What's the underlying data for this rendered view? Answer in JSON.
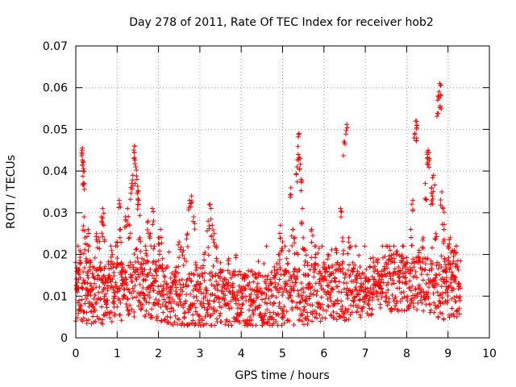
{
  "colors": {
    "series": "#ff0000",
    "axis": "#000000",
    "grid": "#a0a0a0"
  },
  "chart_data": {
    "type": "scatter",
    "title": "Day 278 of 2011, Rate Of TEC Index for receiver hob2",
    "xlabel": "GPS time / hours",
    "ylabel": "ROTI / TECUs",
    "xlim": [
      0,
      10
    ],
    "ylim": [
      0,
      0.07
    ],
    "grid": true,
    "marker": "plus",
    "x_ticks": [
      0,
      1,
      2,
      3,
      4,
      5,
      6,
      7,
      8,
      9,
      10
    ],
    "x_tick_labels": [
      "0",
      "1",
      "2",
      "3",
      "4",
      "5",
      "6",
      "7",
      "8",
      "9",
      "10"
    ],
    "y_ticks": [
      0,
      0.01,
      0.02,
      0.03,
      0.04,
      0.05,
      0.06,
      0.07
    ],
    "y_tick_labels": [
      "0",
      "0.01",
      "0.02",
      "0.03",
      "0.04",
      "0.05",
      "0.06",
      "0.07"
    ],
    "series": [
      {
        "name": "ROTI",
        "color": "#ff0000",
        "points": [
          [
            0.02,
            0.012
          ],
          [
            0.05,
            0.016
          ],
          [
            0.08,
            0.009
          ],
          [
            0.1,
            0.021
          ],
          [
            0.12,
            0.018
          ],
          [
            0.15,
            0.045
          ],
          [
            0.16,
            0.0455
          ],
          [
            0.18,
            0.042
          ],
          [
            0.18,
            0.04
          ],
          [
            0.2,
            0.037
          ],
          [
            0.2,
            0.029
          ],
          [
            0.22,
            0.024
          ],
          [
            0.25,
            0.019
          ],
          [
            0.28,
            0.015
          ],
          [
            0.3,
            0.026
          ],
          [
            0.32,
            0.022
          ],
          [
            0.35,
            0.011
          ],
          [
            0.4,
            0.008
          ],
          [
            0.45,
            0.013
          ],
          [
            0.5,
            0.025
          ],
          [
            0.55,
            0.024
          ],
          [
            0.6,
            0.018
          ],
          [
            0.62,
            0.029
          ],
          [
            0.65,
            0.031
          ],
          [
            0.68,
            0.027
          ],
          [
            0.7,
            0.012
          ],
          [
            0.75,
            0.009
          ],
          [
            0.8,
            0.015
          ],
          [
            0.85,
            0.022
          ],
          [
            0.9,
            0.017
          ],
          [
            0.95,
            0.01
          ],
          [
            1.0,
            0.023
          ],
          [
            1.05,
            0.033
          ],
          [
            1.08,
            0.026
          ],
          [
            1.1,
            0.018
          ],
          [
            1.15,
            0.014
          ],
          [
            1.2,
            0.029
          ],
          [
            1.25,
            0.031
          ],
          [
            1.3,
            0.027
          ],
          [
            1.35,
            0.037
          ],
          [
            1.38,
            0.039
          ],
          [
            1.4,
            0.045
          ],
          [
            1.42,
            0.046
          ],
          [
            1.45,
            0.041
          ],
          [
            1.48,
            0.038
          ],
          [
            1.5,
            0.035
          ],
          [
            1.52,
            0.033
          ],
          [
            1.55,
            0.024
          ],
          [
            1.6,
            0.019
          ],
          [
            1.65,
            0.014
          ],
          [
            1.7,
            0.021
          ],
          [
            1.75,
            0.028
          ],
          [
            1.8,
            0.025
          ],
          [
            1.85,
            0.031
          ],
          [
            1.9,
            0.022
          ],
          [
            1.95,
            0.016
          ],
          [
            2.0,
            0.024
          ],
          [
            2.05,
            0.026
          ],
          [
            2.1,
            0.019
          ],
          [
            2.2,
            0.013
          ],
          [
            2.3,
            0.012
          ],
          [
            2.4,
            0.016
          ],
          [
            2.5,
            0.023
          ],
          [
            2.6,
            0.021
          ],
          [
            2.7,
            0.025
          ],
          [
            2.75,
            0.033
          ],
          [
            2.8,
            0.034
          ],
          [
            2.85,
            0.029
          ],
          [
            2.9,
            0.018
          ],
          [
            3.0,
            0.015
          ],
          [
            3.1,
            0.02
          ],
          [
            3.2,
            0.028
          ],
          [
            3.25,
            0.032
          ],
          [
            3.3,
            0.027
          ],
          [
            3.35,
            0.025
          ],
          [
            3.4,
            0.022
          ],
          [
            3.5,
            0.018
          ],
          [
            3.6,
            0.014
          ],
          [
            3.7,
            0.019
          ],
          [
            3.8,
            0.013
          ],
          [
            3.9,
            0.011
          ],
          [
            4.0,
            0.012
          ],
          [
            4.1,
            0.015
          ],
          [
            4.2,
            0.01
          ],
          [
            4.3,
            0.009
          ],
          [
            4.4,
            0.013
          ],
          [
            4.5,
            0.011
          ],
          [
            4.6,
            0.012
          ],
          [
            4.7,
            0.014
          ],
          [
            4.8,
            0.017
          ],
          [
            4.9,
            0.02
          ],
          [
            4.95,
            0.027
          ],
          [
            5.0,
            0.023
          ],
          [
            5.05,
            0.016
          ],
          [
            5.1,
            0.019
          ],
          [
            5.2,
            0.036
          ],
          [
            5.25,
            0.026
          ],
          [
            5.3,
            0.024
          ],
          [
            5.35,
            0.041
          ],
          [
            5.38,
            0.044
          ],
          [
            5.4,
            0.049
          ],
          [
            5.42,
            0.043
          ],
          [
            5.45,
            0.038
          ],
          [
            5.48,
            0.031
          ],
          [
            5.5,
            0.024
          ],
          [
            5.55,
            0.021
          ],
          [
            5.6,
            0.018
          ],
          [
            5.7,
            0.026
          ],
          [
            5.8,
            0.02
          ],
          [
            5.9,
            0.016
          ],
          [
            6.0,
            0.018
          ],
          [
            6.1,
            0.02
          ],
          [
            6.2,
            0.017
          ],
          [
            6.3,
            0.021
          ],
          [
            6.4,
            0.031
          ],
          [
            6.45,
            0.024
          ],
          [
            6.5,
            0.047
          ],
          [
            6.55,
            0.0512
          ],
          [
            6.6,
            0.024
          ],
          [
            6.7,
            0.018
          ],
          [
            6.8,
            0.015
          ],
          [
            6.9,
            0.013
          ],
          [
            7.0,
            0.012
          ],
          [
            7.1,
            0.011
          ],
          [
            7.2,
            0.014
          ],
          [
            7.3,
            0.016
          ],
          [
            7.4,
            0.015
          ],
          [
            7.5,
            0.018
          ],
          [
            7.6,
            0.021
          ],
          [
            7.7,
            0.019
          ],
          [
            7.8,
            0.017
          ],
          [
            7.9,
            0.022
          ],
          [
            8.0,
            0.018
          ],
          [
            8.1,
            0.026
          ],
          [
            8.15,
            0.033
          ],
          [
            8.2,
            0.049
          ],
          [
            8.22,
            0.052
          ],
          [
            8.25,
            0.051
          ],
          [
            8.3,
            0.021
          ],
          [
            8.4,
            0.024
          ],
          [
            8.45,
            0.037
          ],
          [
            8.5,
            0.044
          ],
          [
            8.52,
            0.045
          ],
          [
            8.55,
            0.043
          ],
          [
            8.6,
            0.036
          ],
          [
            8.62,
            0.034
          ],
          [
            8.65,
            0.039
          ],
          [
            8.7,
            0.025
          ],
          [
            8.75,
            0.057
          ],
          [
            8.78,
            0.059
          ],
          [
            8.8,
            0.061
          ],
          [
            8.82,
            0.058
          ],
          [
            8.85,
            0.035
          ],
          [
            8.88,
            0.031
          ],
          [
            8.9,
            0.026
          ],
          [
            8.92,
            0.019
          ],
          [
            8.95,
            0.017
          ],
          [
            9.0,
            0.022
          ],
          [
            9.05,
            0.024
          ],
          [
            9.1,
            0.012
          ],
          [
            9.15,
            0.021
          ],
          [
            9.2,
            0.022
          ],
          [
            9.25,
            0.013
          ]
        ],
        "baseline": [
          [
            0.0,
            0.011
          ],
          [
            0.5,
            0.01
          ],
          [
            1.0,
            0.011
          ],
          [
            1.5,
            0.012
          ],
          [
            2.0,
            0.011
          ],
          [
            2.5,
            0.009
          ],
          [
            3.0,
            0.009
          ],
          [
            3.5,
            0.009
          ],
          [
            4.0,
            0.009
          ],
          [
            4.5,
            0.009
          ],
          [
            5.0,
            0.01
          ],
          [
            5.5,
            0.01
          ],
          [
            6.0,
            0.011
          ],
          [
            6.5,
            0.011
          ],
          [
            7.0,
            0.012
          ],
          [
            7.5,
            0.013
          ],
          [
            8.0,
            0.013
          ],
          [
            8.5,
            0.012
          ],
          [
            9.0,
            0.011
          ],
          [
            9.3,
            0.012
          ]
        ]
      }
    ]
  }
}
